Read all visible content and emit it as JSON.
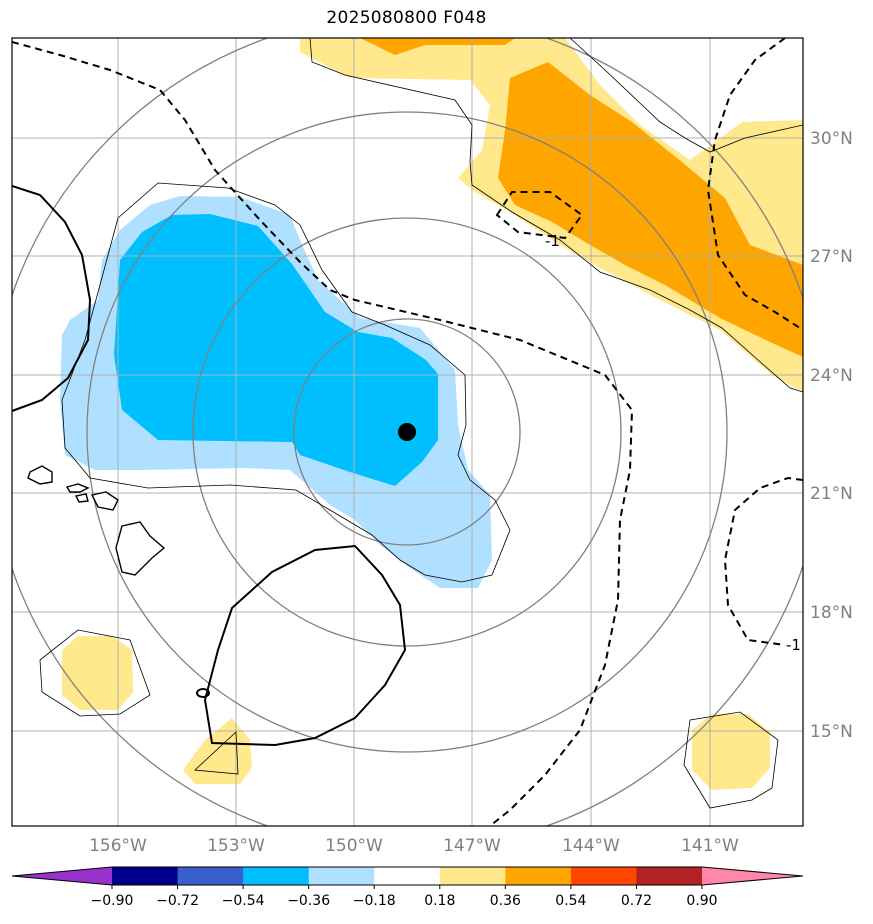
{
  "title": "2025080800 F048",
  "map": {
    "lon_ticks": [
      "156°W",
      "153°W",
      "150°W",
      "147°W",
      "144°W",
      "141°W"
    ],
    "lat_ticks": [
      "30°N",
      "27°N",
      "24°N",
      "21°N",
      "18°N",
      "15°N"
    ],
    "contour_label": "-1",
    "marker": "storm-center-dot",
    "colors": {
      "light_blue": "#b0e0ff",
      "blue": "#00bfff",
      "light_yellow": "#ffe98c",
      "orange": "#ffa500",
      "grid": "#b0b0b0",
      "range_ring": "#808080"
    }
  },
  "colorbar": {
    "labels": [
      "−0.90",
      "−0.72",
      "−0.54",
      "−0.36",
      "−0.18",
      "0.18",
      "0.36",
      "0.54",
      "0.72",
      "0.90"
    ],
    "colors": [
      "#9932cc",
      "#00008b",
      "#3a5fcd",
      "#00bfff",
      "#b0e0ff",
      "#ffffff",
      "#ffe98c",
      "#ffa500",
      "#ff4500",
      "#b22222",
      "#ff88aa"
    ]
  }
}
